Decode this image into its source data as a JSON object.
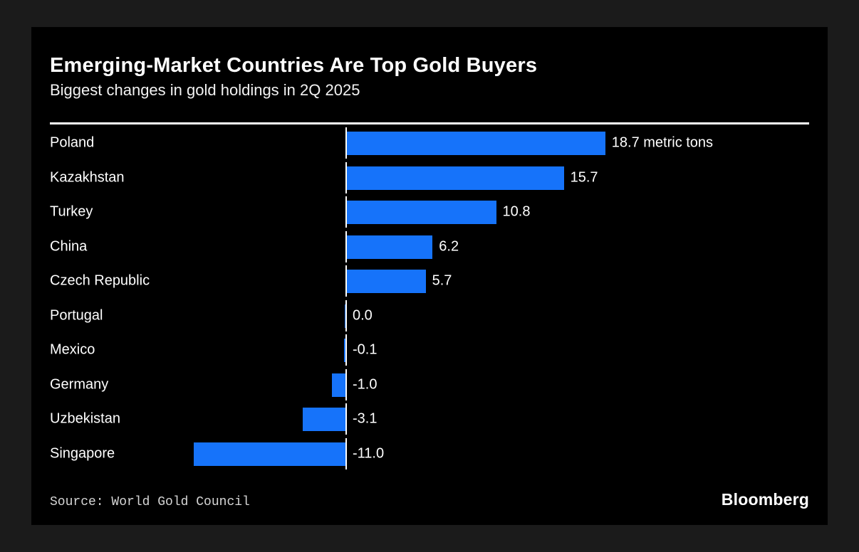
{
  "page": {
    "background_color": "#1b1b1b",
    "card_background_color": "#000000"
  },
  "header": {
    "title": "Emerging-Market Countries Are Top Gold Buyers",
    "subtitle": "Biggest changes in gold holdings in 2Q 2025"
  },
  "footer": {
    "source": "Source: World Gold Council",
    "brand": "Bloomberg"
  },
  "chart_data": {
    "type": "bar",
    "orientation": "horizontal",
    "title": "Emerging-Market Countries Are Top Gold Buyers",
    "subtitle": "Biggest changes in gold holdings in 2Q 2025",
    "unit": "metric tons",
    "bar_color": "#1673fa",
    "axis_color": "#ffffff",
    "xlim": [
      -11.5,
      19.5
    ],
    "grid": false,
    "legend": false,
    "categories": [
      "Poland",
      "Kazakhstan",
      "Turkey",
      "China",
      "Czech Republic",
      "Portugal",
      "Mexico",
      "Germany",
      "Uzbekistan",
      "Singapore"
    ],
    "values": [
      18.7,
      15.7,
      10.8,
      6.2,
      5.7,
      0.0,
      -0.1,
      -1.0,
      -3.1,
      -11.0
    ],
    "value_labels": [
      "18.7 metric tons",
      "15.7",
      "10.8",
      "6.2",
      "5.7",
      "0.0",
      "-0.1",
      "-1.0",
      "-3.1",
      "-11.0"
    ]
  }
}
